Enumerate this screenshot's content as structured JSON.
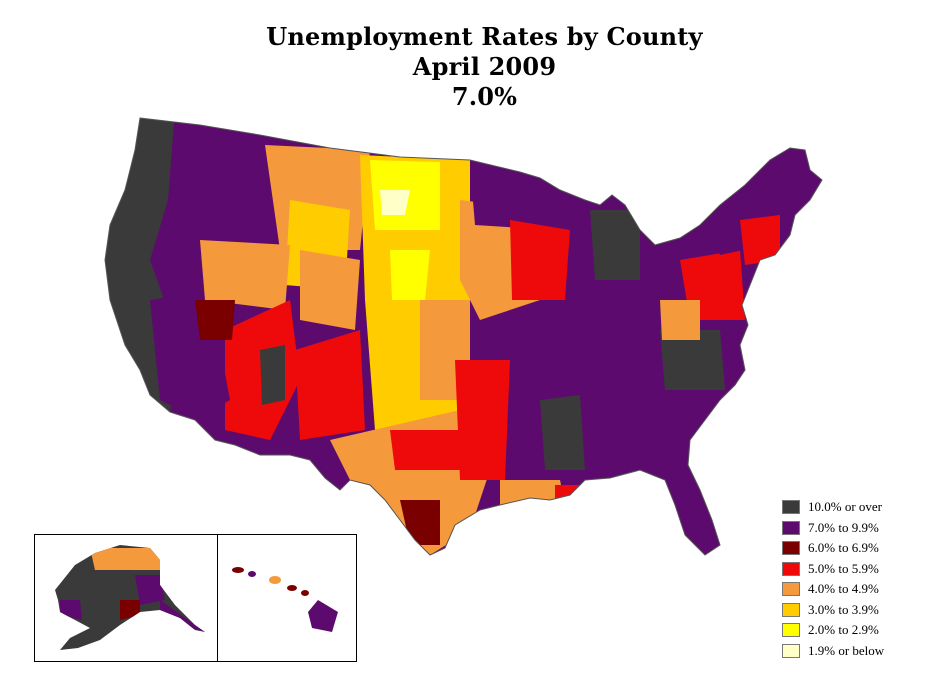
{
  "title": {
    "line1": "Unemployment Rates by County",
    "line2": "April 2009",
    "line3": "7.0%"
  },
  "legend": [
    {
      "label": "10.0% or over",
      "color": "#3a3a3a"
    },
    {
      "label": "7.0% to 9.9%",
      "color": "#5c0a6e"
    },
    {
      "label": "6.0% to 6.9%",
      "color": "#7a0000"
    },
    {
      "label": "5.0% to 5.9%",
      "color": "#ee0a0a"
    },
    {
      "label": "4.0% to 4.9%",
      "color": "#f59a3c"
    },
    {
      "label": "3.0% to 3.9%",
      "color": "#ffcc00"
    },
    {
      "label": "2.0% to 2.9%",
      "color": "#ffff00"
    },
    {
      "label": "1.9% or below",
      "color": "#ffffc8"
    }
  ],
  "county_border_color": "#ffffff"
}
